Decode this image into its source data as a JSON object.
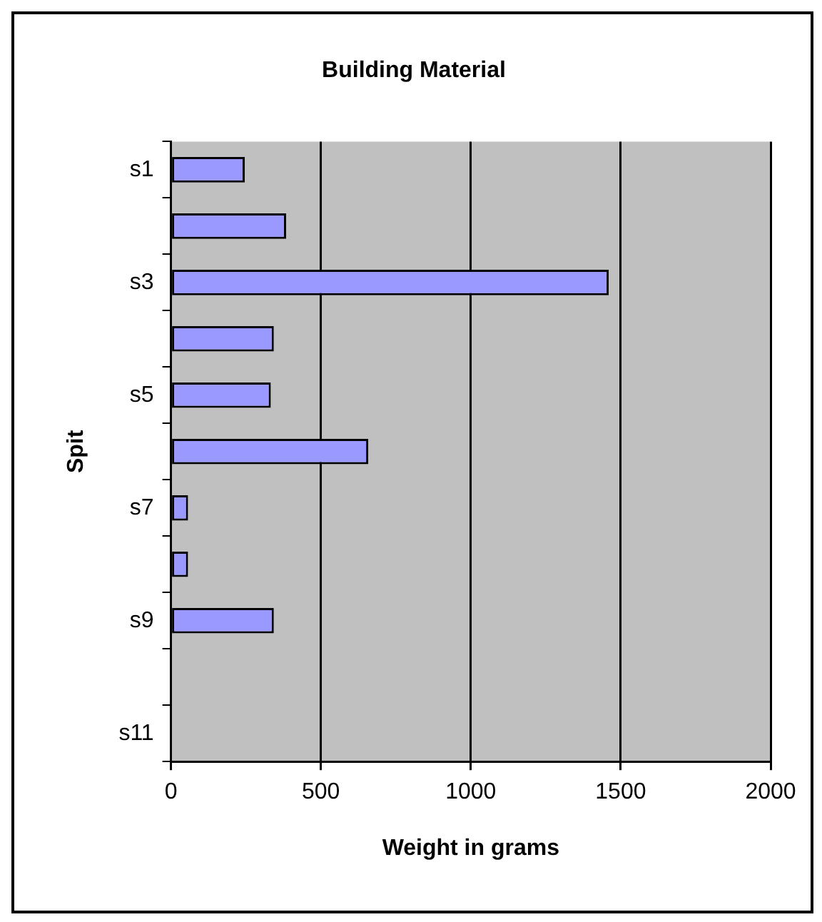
{
  "chart_data": {
    "type": "bar",
    "orientation": "horizontal",
    "title": "Building Material",
    "xlabel": "Weight in grams",
    "ylabel": "Spit",
    "categories": [
      "s1",
      null,
      "s3",
      null,
      "s5",
      null,
      "s7",
      null,
      "s9",
      null,
      "s11"
    ],
    "values": [
      246,
      384,
      1460,
      343,
      333,
      658,
      57,
      57,
      343,
      null,
      null
    ],
    "color": "#9999ff",
    "xlim": [
      0,
      2000
    ],
    "xticks": [
      0,
      500,
      1000,
      1500,
      2000
    ],
    "grid": "x",
    "legend": false
  }
}
